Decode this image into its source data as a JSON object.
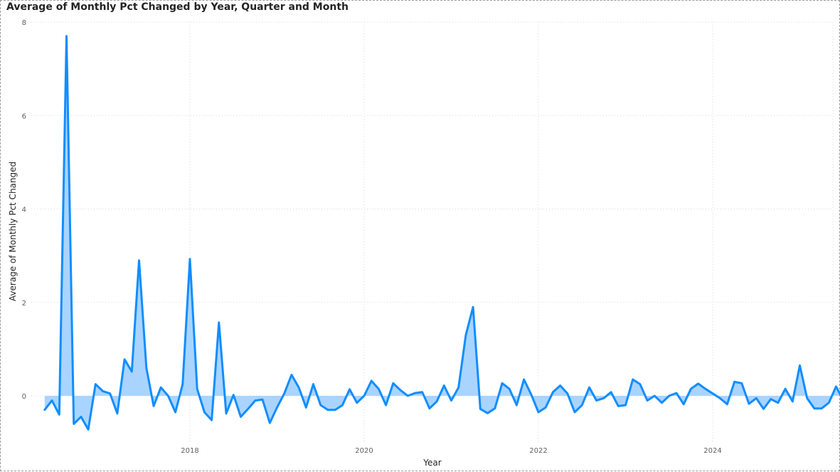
{
  "chart_data": {
    "type": "area",
    "title": "Average of Monthly Pct Changed by Year, Quarter and Month",
    "xlabel": "Year",
    "ylabel": "Average of Monthly Pct Changed",
    "ylim": [
      -1,
      8
    ],
    "y_ticks": [
      "0",
      "2",
      "4",
      "6",
      "8"
    ],
    "x_ticks": [
      "2018",
      "2020",
      "2022",
      "2024"
    ],
    "grid": true,
    "legend": "none",
    "colors": {
      "line": "#118DFF",
      "fill": "#A9D4FF"
    },
    "series": [
      {
        "start": "2016-05",
        "values": [
          -0.3,
          -0.1,
          -0.4,
          7.7,
          -0.6,
          -0.45,
          -0.72,
          0.25,
          0.1,
          0.05,
          -0.38,
          0.78,
          0.52,
          2.9,
          0.6,
          -0.22,
          0.18,
          0.0,
          -0.35,
          0.25,
          2.93,
          0.15,
          -0.35,
          -0.52,
          1.57,
          -0.38,
          0.02,
          -0.45,
          -0.28,
          -0.1,
          -0.08,
          -0.58,
          -0.25,
          0.05,
          0.45,
          0.18,
          -0.25,
          0.25,
          -0.2,
          -0.3,
          -0.3,
          -0.2,
          0.14,
          -0.15,
          0.0,
          0.32,
          0.15,
          -0.2,
          0.27,
          0.12,
          0.0,
          0.06,
          0.08,
          -0.27,
          -0.12,
          0.22,
          -0.1,
          0.18,
          1.3,
          1.9,
          -0.28,
          -0.37,
          -0.27,
          0.27,
          0.15,
          -0.2,
          0.35,
          0.03,
          -0.35,
          -0.25,
          0.08,
          0.22,
          0.05,
          -0.35,
          -0.2,
          0.18,
          -0.1,
          -0.05,
          0.08,
          -0.22,
          -0.2,
          0.35,
          0.25,
          -0.1,
          0.0,
          -0.15,
          0.0,
          0.06,
          -0.18,
          0.15,
          0.26,
          0.15,
          0.05,
          -0.05,
          -0.18,
          0.3,
          0.27,
          -0.17,
          -0.05,
          -0.28,
          -0.07,
          -0.15,
          0.15,
          -0.12,
          0.65,
          -0.05,
          -0.27,
          -0.27,
          -0.15,
          0.2,
          -0.1
        ]
      }
    ]
  }
}
